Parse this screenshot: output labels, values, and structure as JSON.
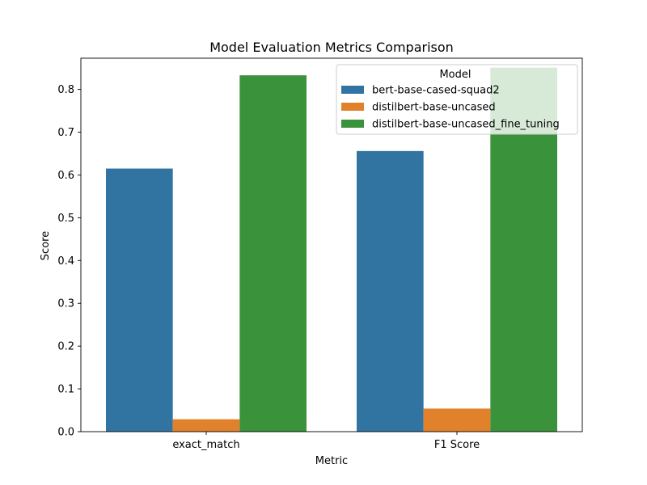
{
  "chart_data": {
    "type": "bar",
    "title": "Model Evaluation Metrics Comparison",
    "xlabel": "Metric",
    "ylabel": "Score",
    "categories": [
      "exact_match",
      "F1 Score"
    ],
    "series": [
      {
        "name": "bert-base-cased-squad2",
        "color": "#3274a1",
        "values": [
          0.615,
          0.656
        ]
      },
      {
        "name": "distilbert-base-uncased",
        "color": "#e1812c",
        "values": [
          0.029,
          0.054
        ]
      },
      {
        "name": "distilbert-base-uncased_fine_tuning",
        "color": "#3a923a",
        "values": [
          0.833,
          0.851
        ]
      }
    ],
    "ylim": [
      0,
      0.873
    ],
    "yticks": [
      0.0,
      0.1,
      0.2,
      0.3,
      0.4,
      0.5,
      0.6,
      0.7,
      0.8
    ],
    "ytick_labels": [
      "0.0",
      "0.1",
      "0.2",
      "0.3",
      "0.4",
      "0.5",
      "0.6",
      "0.7",
      "0.8"
    ],
    "grid": false,
    "legend": {
      "title": "Model",
      "position": "top-right"
    }
  }
}
